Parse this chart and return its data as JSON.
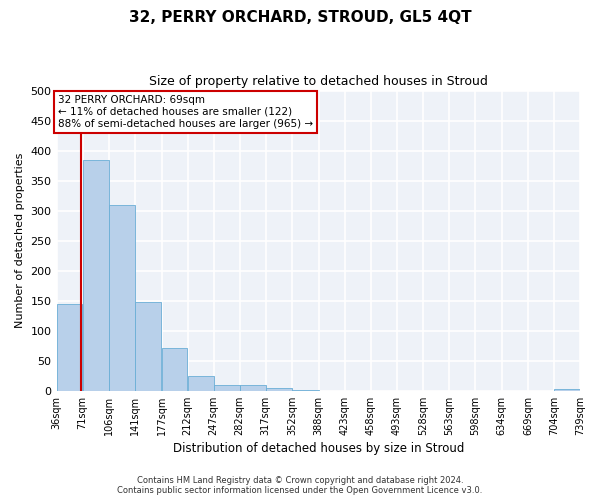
{
  "title": "32, PERRY ORCHARD, STROUD, GL5 4QT",
  "subtitle": "Size of property relative to detached houses in Stroud",
  "xlabel": "Distribution of detached houses by size in Stroud",
  "ylabel": "Number of detached properties",
  "bar_color": "#b8d0ea",
  "bar_edge_color": "#6aaed6",
  "annotation_box_color": "#cc0000",
  "property_line_color": "#cc0000",
  "property_size": 69,
  "annotation_line1": "32 PERRY ORCHARD: 69sqm",
  "annotation_line2": "← 11% of detached houses are smaller (122)",
  "annotation_line3": "88% of semi-detached houses are larger (965) →",
  "bin_edges": [
    36,
    71,
    106,
    141,
    177,
    212,
    247,
    282,
    317,
    352,
    388,
    423,
    458,
    493,
    528,
    563,
    598,
    634,
    669,
    704,
    739
  ],
  "bar_heights": [
    145,
    385,
    310,
    148,
    72,
    24,
    9,
    9,
    4,
    1,
    0,
    0,
    0,
    0,
    0,
    0,
    0,
    0,
    0,
    3
  ],
  "ylim": [
    0,
    500
  ],
  "yticks": [
    0,
    50,
    100,
    150,
    200,
    250,
    300,
    350,
    400,
    450,
    500
  ],
  "background_color": "#eef2f8",
  "grid_color": "#ffffff",
  "footer_line1": "Contains HM Land Registry data © Crown copyright and database right 2024.",
  "footer_line2": "Contains public sector information licensed under the Open Government Licence v3.0."
}
